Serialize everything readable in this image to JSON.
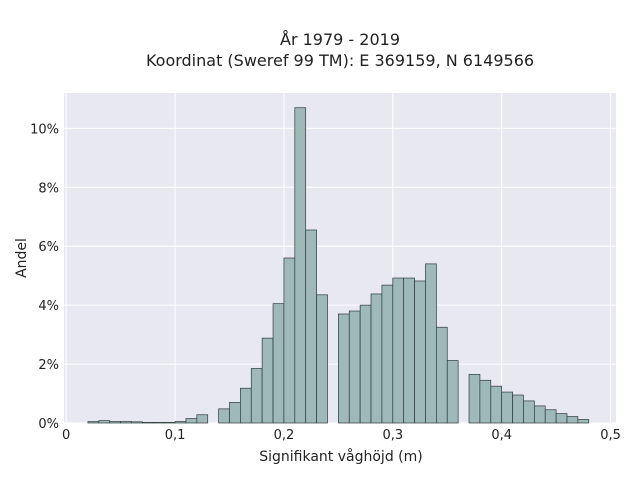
{
  "chart_data": {
    "type": "bar",
    "title_lines": [
      "År 1979 - 2019",
      "Koordinat (Sweref 99 TM): E 369159, N 6149566"
    ],
    "xlabel": "Signifikant våghöjd (m)",
    "ylabel": "Andel",
    "xlim": [
      -0.002,
      0.505
    ],
    "ylim": [
      0,
      11.2
    ],
    "x_ticks": [
      0,
      0.1,
      0.2,
      0.3,
      0.4,
      0.5
    ],
    "x_tick_labels": [
      "0",
      "0,1",
      "0,2",
      "0,3",
      "0,4",
      "0,5"
    ],
    "y_ticks": [
      0,
      2,
      4,
      6,
      8,
      10
    ],
    "y_tick_labels": [
      "0%",
      "2%",
      "4%",
      "6%",
      "8%",
      "10%"
    ],
    "grid": true,
    "legend": false,
    "bin_width": 0.01,
    "bin_starts": [
      0.02,
      0.03,
      0.04,
      0.05,
      0.06,
      0.07,
      0.08,
      0.09,
      0.1,
      0.11,
      0.12,
      0.14,
      0.15,
      0.16,
      0.17,
      0.18,
      0.19,
      0.2,
      0.21,
      0.22,
      0.23,
      0.25,
      0.26,
      0.27,
      0.28,
      0.29,
      0.3,
      0.31,
      0.32,
      0.33,
      0.34,
      0.35,
      0.37,
      0.38,
      0.39,
      0.4,
      0.41,
      0.42,
      0.43,
      0.44,
      0.45,
      0.46,
      0.47
    ],
    "values": [
      0.05,
      0.08,
      0.05,
      0.05,
      0.04,
      0.02,
      0.02,
      0.02,
      0.05,
      0.15,
      0.28,
      0.48,
      0.7,
      1.18,
      1.85,
      2.88,
      4.05,
      5.6,
      10.7,
      6.55,
      4.35,
      3.7,
      3.8,
      4.0,
      4.38,
      4.68,
      4.92,
      4.92,
      4.82,
      5.4,
      3.25,
      2.12,
      1.65,
      1.45,
      1.25,
      1.05,
      0.95,
      0.75,
      0.58,
      0.45,
      0.32,
      0.22,
      0.12
    ],
    "colors": {
      "bar_fill": "#9fb9b9",
      "bar_stroke": "#2d3b3b",
      "plot_bg": "#e8e8f0",
      "grid": "#ffffff"
    }
  }
}
